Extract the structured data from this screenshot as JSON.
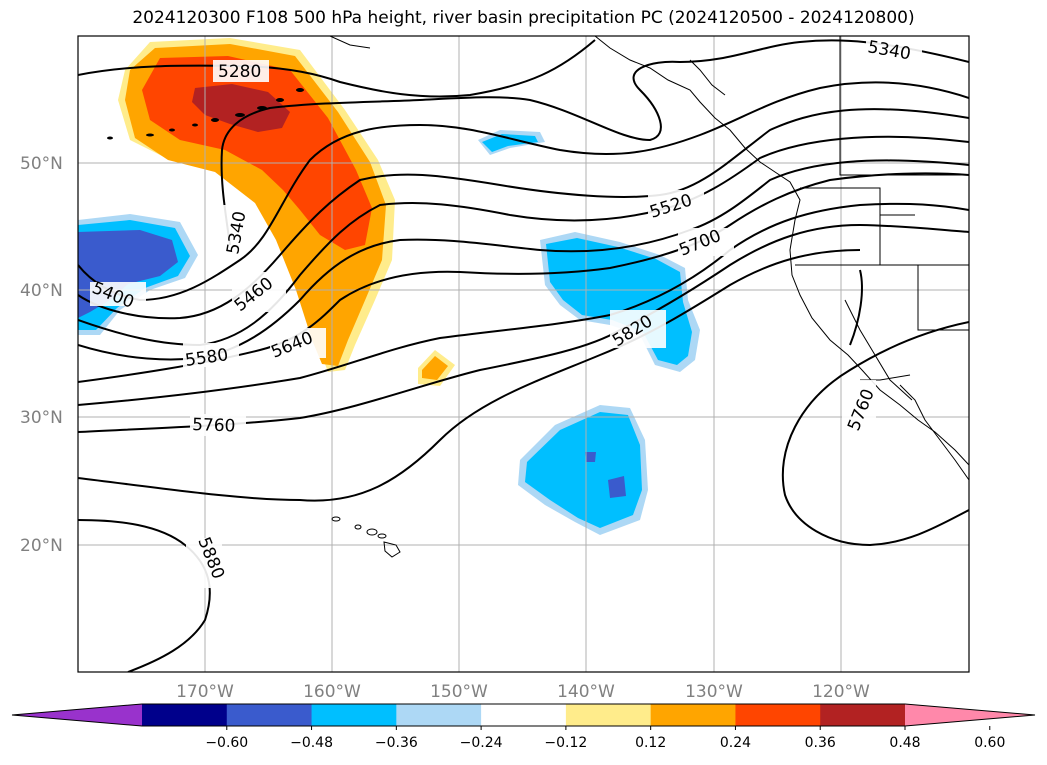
{
  "title": "2024120300 F108 500 hPa height, river basin precipitation PC (2024120500 - 2024120800)",
  "latitude_labels": [
    "50°N",
    "40°N",
    "30°N",
    "20°N"
  ],
  "longitude_labels": [
    "170°W",
    "160°W",
    "150°W",
    "140°W",
    "130°W",
    "120°W"
  ],
  "contour_labels": [
    "5280",
    "5340",
    "5340",
    "5400",
    "5460",
    "5520",
    "5580",
    "5640",
    "5700",
    "5760",
    "5760",
    "5820",
    "5880"
  ],
  "colorbar": {
    "ticks": [
      "−0.60",
      "−0.48",
      "−0.36",
      "−0.24",
      "−0.12",
      "0.12",
      "0.24",
      "0.36",
      "0.48",
      "0.60"
    ],
    "colors": [
      "#9932cc",
      "#00008b",
      "#3a5bcd",
      "#00bfff",
      "#add8f5",
      "#ffffff",
      "#ffec8b",
      "#ffa500",
      "#ff4500",
      "#b22222",
      "#ff88aa"
    ]
  },
  "colors": {
    "positive_light": "#ffec8b",
    "positive_mid": "#ffa500",
    "positive_strong": "#ff4500",
    "positive_max": "#b22222",
    "negative_light": "#add8f5",
    "negative_mid": "#00bfff",
    "negative_strong": "#3a5bcd",
    "negative_max": "#00008b"
  }
}
